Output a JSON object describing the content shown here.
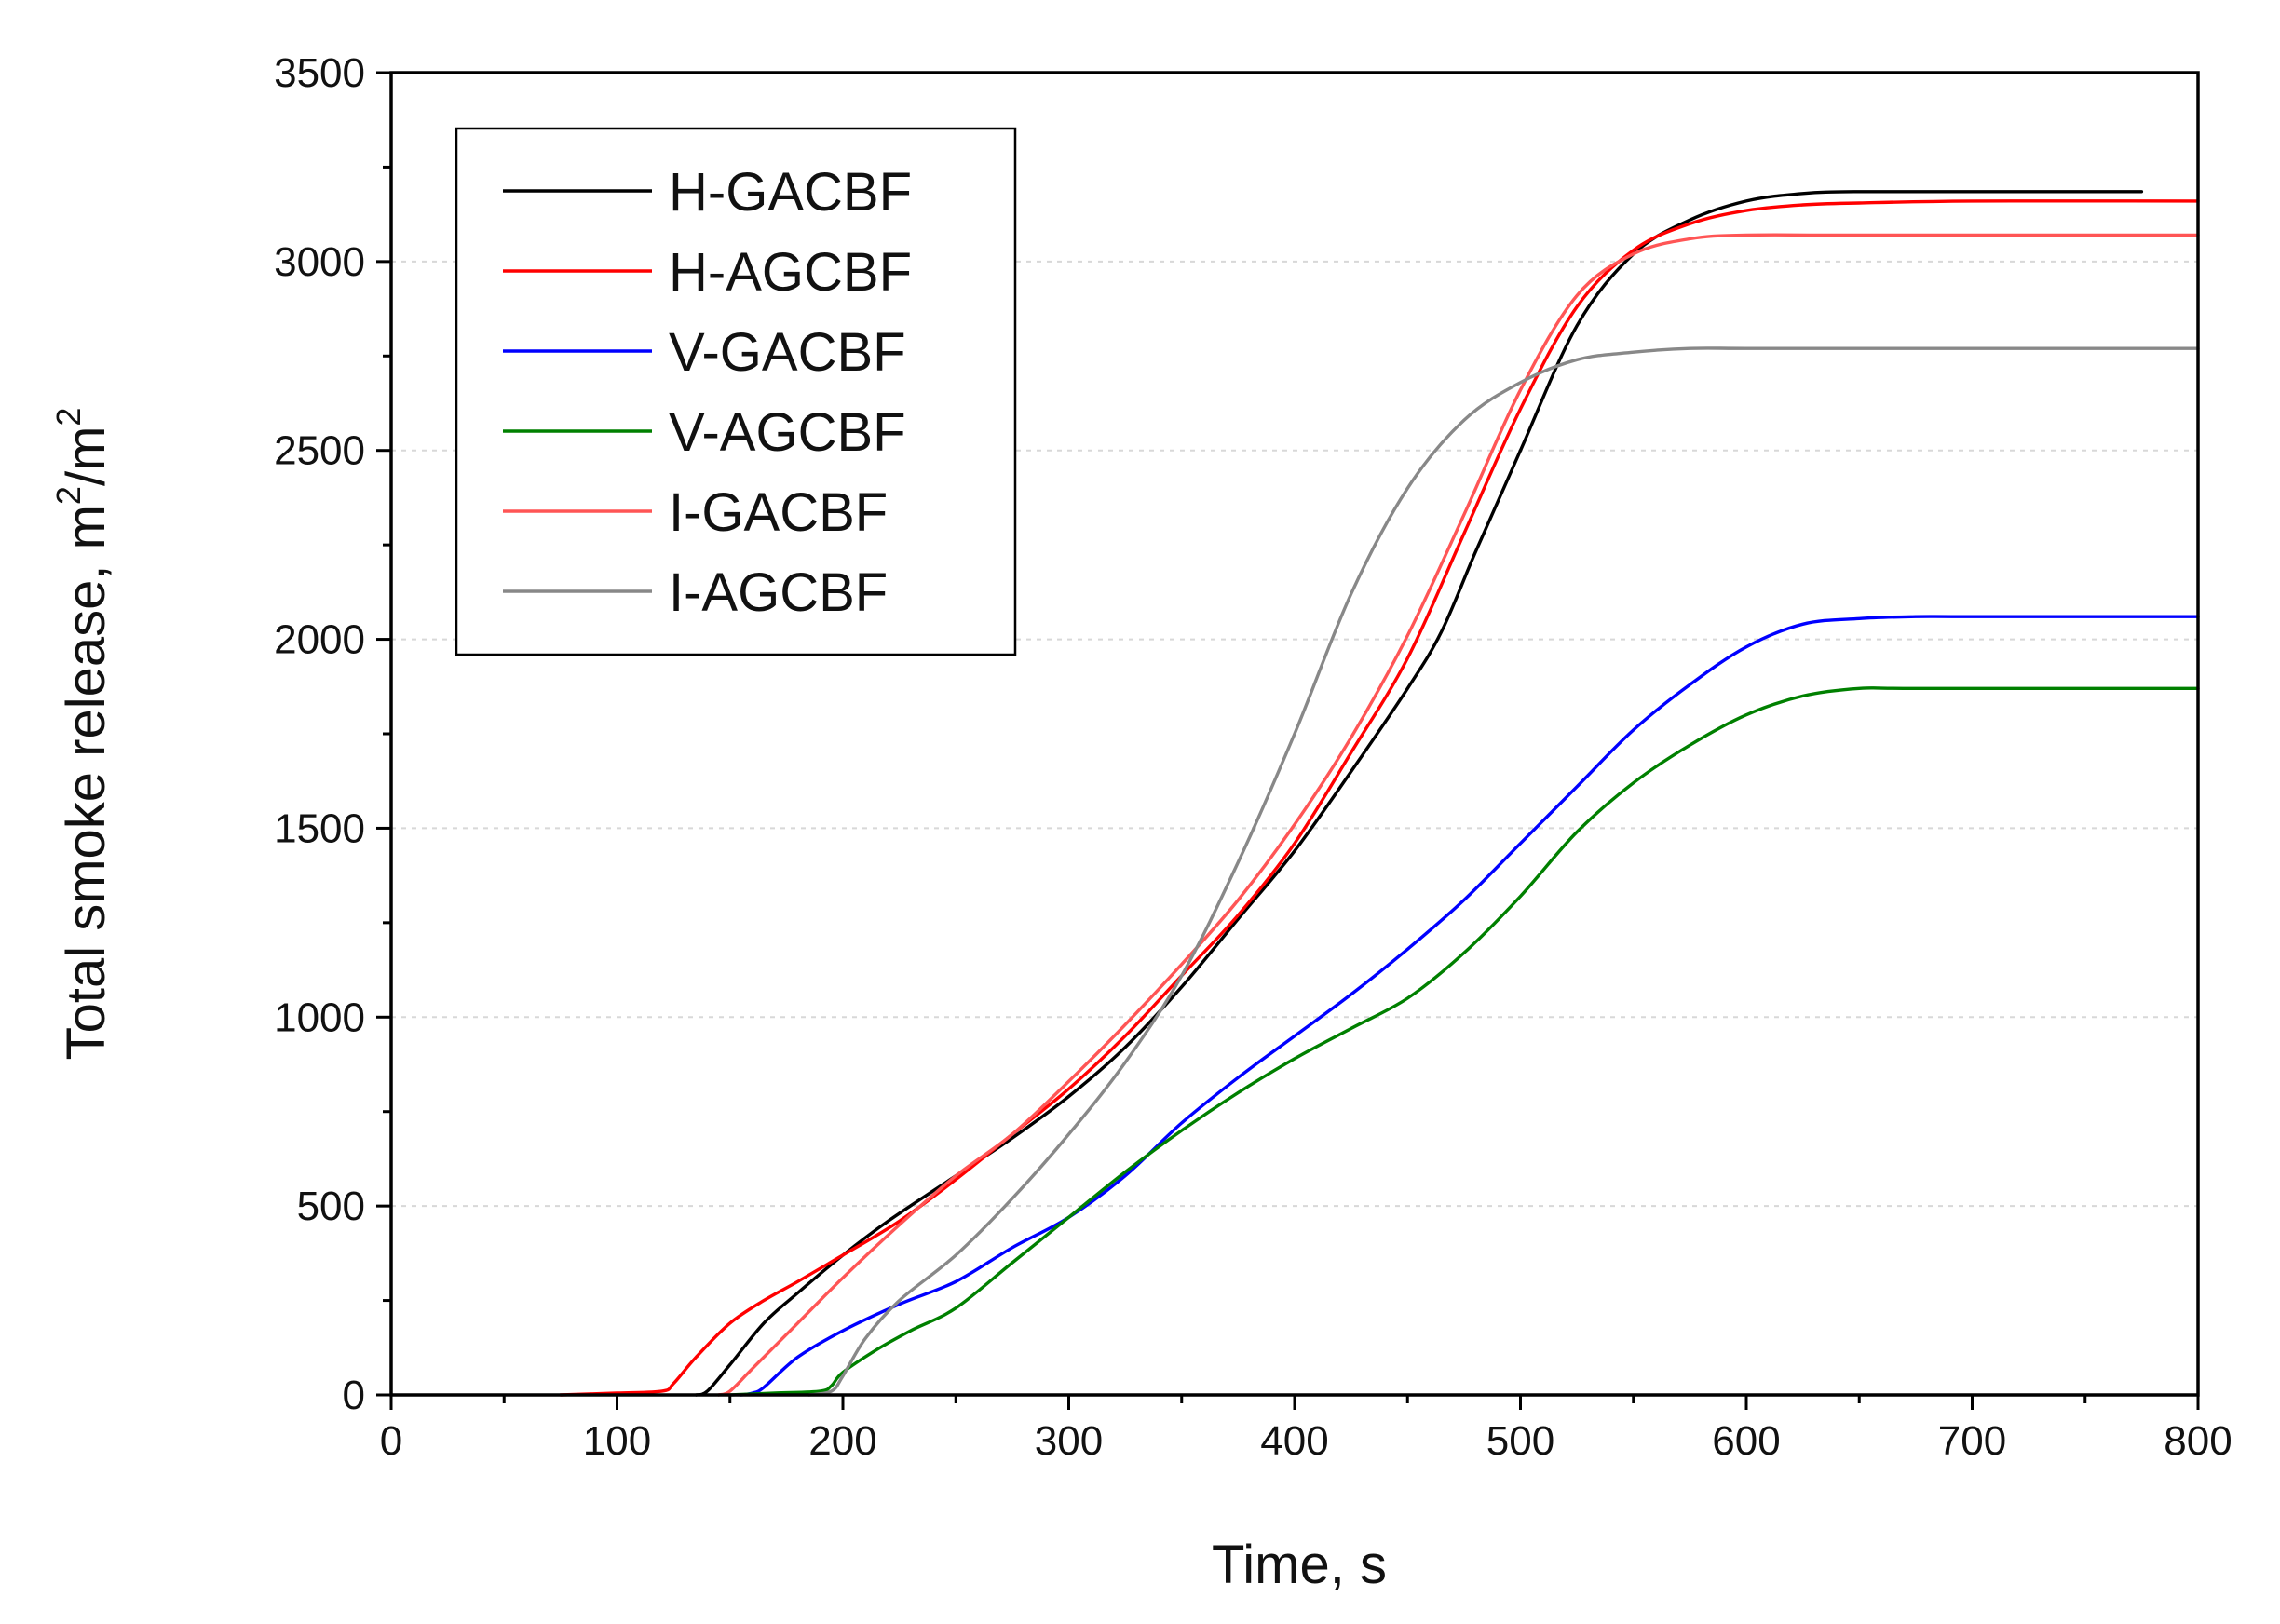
{
  "chart_data": {
    "type": "line",
    "title": "",
    "xlabel": "Time, s",
    "ylabel": "Total smoke release, m",
    "ylabel_units": "m²/m²",
    "ylabel_sup": "2",
    "ylabel_tail": "/m",
    "xlim": [
      0,
      800
    ],
    "ylim": [
      0,
      3500
    ],
    "xticks": [
      0,
      100,
      200,
      300,
      400,
      500,
      600,
      700,
      800
    ],
    "yticks": [
      0,
      500,
      1000,
      1500,
      2000,
      2500,
      3000,
      3500
    ],
    "grid": true,
    "legend_position": "top-left",
    "series": [
      {
        "name": "H-GACBF",
        "color": "#000000",
        "x": [
          135,
          140,
          150,
          165,
          180,
          200,
          220,
          250,
          275,
          300,
          325,
          350,
          375,
          400,
          425,
          450,
          465,
          480,
          500,
          525,
          550,
          575,
          600,
          625,
          650,
          700,
          775
        ],
        "y": [
          0,
          10,
          80,
          190,
          270,
          370,
          460,
          580,
          680,
          790,
          920,
          1080,
          1260,
          1440,
          1650,
          1870,
          2020,
          2230,
          2500,
          2830,
          3020,
          3110,
          3160,
          3180,
          3185,
          3185,
          3185
        ]
      },
      {
        "name": "H-AGCBF",
        "color": "#ff0000",
        "x": [
          75,
          100,
          120,
          125,
          135,
          150,
          165,
          180,
          200,
          225,
          250,
          275,
          300,
          325,
          350,
          375,
          400,
          425,
          450,
          475,
          500,
          525,
          550,
          575,
          600,
          625,
          650,
          700,
          800
        ],
        "y": [
          0,
          5,
          10,
          30,
          100,
          190,
          250,
          300,
          370,
          460,
          570,
          690,
          810,
          950,
          1110,
          1270,
          1460,
          1700,
          1950,
          2280,
          2610,
          2880,
          3030,
          3100,
          3135,
          3150,
          3155,
          3160,
          3160
        ]
      },
      {
        "name": "V-GACBF",
        "color": "#0000ff",
        "x": [
          155,
          160,
          165,
          180,
          200,
          225,
          250,
          275,
          300,
          325,
          350,
          375,
          400,
          425,
          450,
          475,
          500,
          525,
          550,
          575,
          600,
          625,
          650,
          675,
          700,
          800
        ],
        "y": [
          0,
          5,
          20,
          100,
          170,
          240,
          300,
          390,
          470,
          580,
          720,
          840,
          950,
          1060,
          1180,
          1310,
          1460,
          1610,
          1760,
          1880,
          1980,
          2040,
          2055,
          2060,
          2060,
          2060
        ]
      },
      {
        "name": "V-AGCBF",
        "color": "#008000",
        "x": [
          150,
          170,
          190,
          195,
          200,
          215,
          230,
          250,
          275,
          300,
          325,
          350,
          375,
          400,
          425,
          450,
          475,
          500,
          525,
          550,
          575,
          600,
          625,
          650,
          675,
          800
        ],
        "y": [
          0,
          5,
          10,
          25,
          60,
          120,
          170,
          230,
          350,
          470,
          590,
          700,
          800,
          890,
          970,
          1050,
          1170,
          1320,
          1490,
          1620,
          1720,
          1800,
          1850,
          1870,
          1870,
          1870
        ]
      },
      {
        "name": "I-GACBF",
        "color": "#ff5555",
        "x": [
          145,
          150,
          160,
          180,
          200,
          225,
          250,
          275,
          300,
          325,
          350,
          375,
          400,
          425,
          450,
          475,
          500,
          525,
          550,
          575,
          600,
          650,
          800
        ],
        "y": [
          0,
          10,
          70,
          190,
          310,
          450,
          580,
          690,
          830,
          980,
          1140,
          1310,
          1510,
          1740,
          2010,
          2330,
          2660,
          2910,
          3020,
          3060,
          3070,
          3070,
          3070
        ]
      },
      {
        "name": "I-AGCBF",
        "color": "#888888",
        "x": [
          185,
          195,
          200,
          210,
          225,
          250,
          275,
          300,
          325,
          350,
          375,
          400,
          425,
          450,
          475,
          500,
          525,
          550,
          575,
          600,
          650,
          800
        ],
        "y": [
          0,
          10,
          50,
          150,
          250,
          370,
          520,
          690,
          880,
          1110,
          1410,
          1750,
          2120,
          2400,
          2580,
          2680,
          2740,
          2760,
          2770,
          2770,
          2770,
          2770
        ]
      }
    ]
  }
}
